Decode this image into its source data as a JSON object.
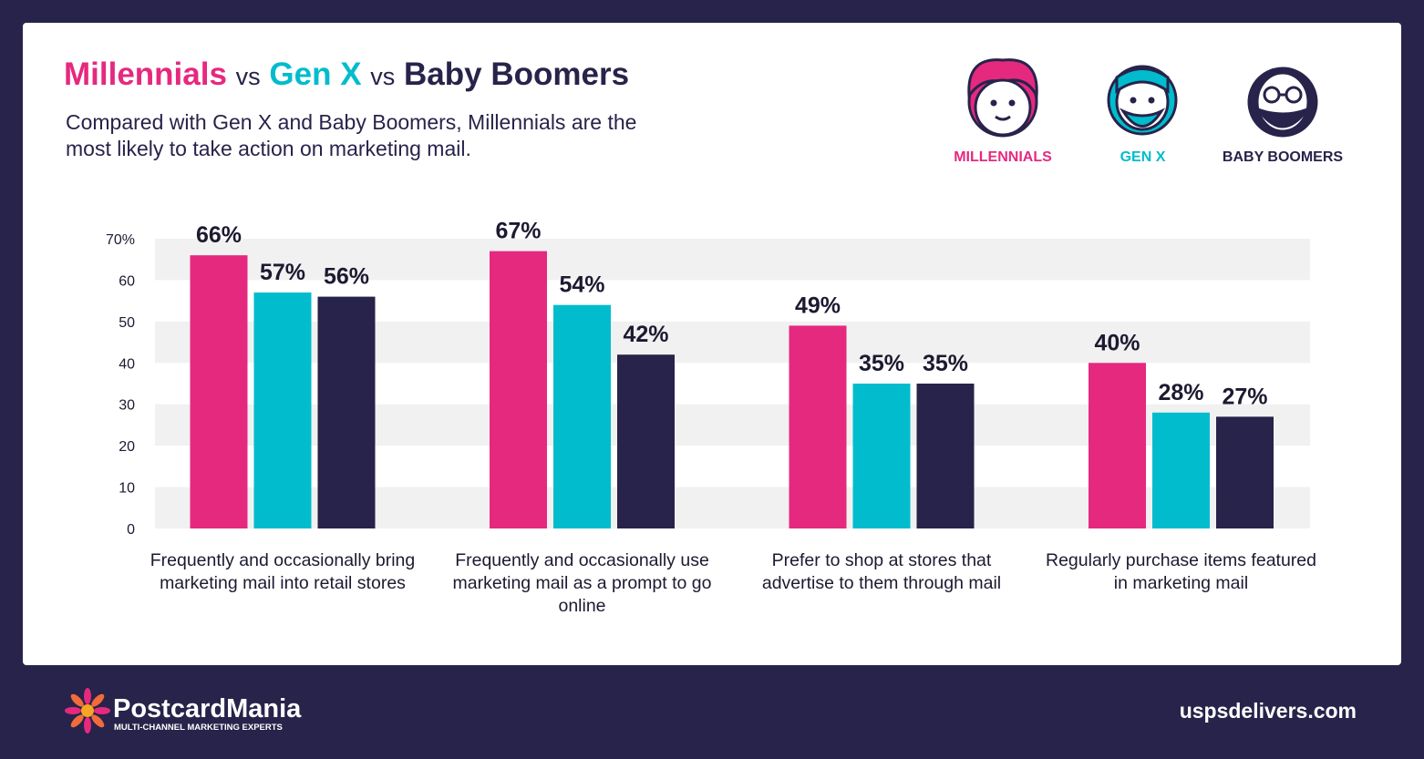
{
  "chart_data": {
    "type": "bar",
    "title_parts": [
      {
        "text": "Millennials",
        "color": "#e5297f"
      },
      {
        "text": "vs",
        "color": "#27234a"
      },
      {
        "text": "Gen X",
        "color": "#00bccd"
      },
      {
        "text": "vs",
        "color": "#27234a"
      },
      {
        "text": "Baby Boomers",
        "color": "#27234a"
      }
    ],
    "subtitle": "Compared with Gen X and Baby Boomers, Millennials are the most likely to take action on marketing mail.",
    "categories": [
      "Frequently and occasionally bring marketing mail into retail stores",
      "Frequently and occasionally use marketing mail as a prompt to go online",
      "Prefer to shop at stores that advertise to them through mail",
      "Regularly purchase items featured in marketing mail"
    ],
    "series": [
      {
        "name": "MILLENNIALS",
        "color": "#e5297f",
        "values": [
          66,
          67,
          49,
          40
        ],
        "value_labels": [
          "66%",
          "67%",
          "49%",
          "40%"
        ]
      },
      {
        "name": "GEN X",
        "color": "#00bccd",
        "values": [
          57,
          54,
          35,
          28
        ],
        "value_labels": [
          "57%",
          "54%",
          "35%",
          "28%"
        ]
      },
      {
        "name": "BABY BOOMERS",
        "color": "#27234a",
        "values": [
          56,
          42,
          35,
          27
        ],
        "value_labels": [
          "56%",
          "42%",
          "35%",
          "27%"
        ]
      }
    ],
    "ylim": [
      0,
      70
    ],
    "yticks": [
      0,
      10,
      20,
      30,
      40,
      50,
      60,
      {
        "value": 70,
        "label": "70%"
      }
    ],
    "grid": "bands"
  },
  "footer": {
    "brand": "PostcardMania",
    "tagline": "MULTI-CHANNEL MARKETING EXPERTS",
    "source": "uspsdelivers.com"
  }
}
